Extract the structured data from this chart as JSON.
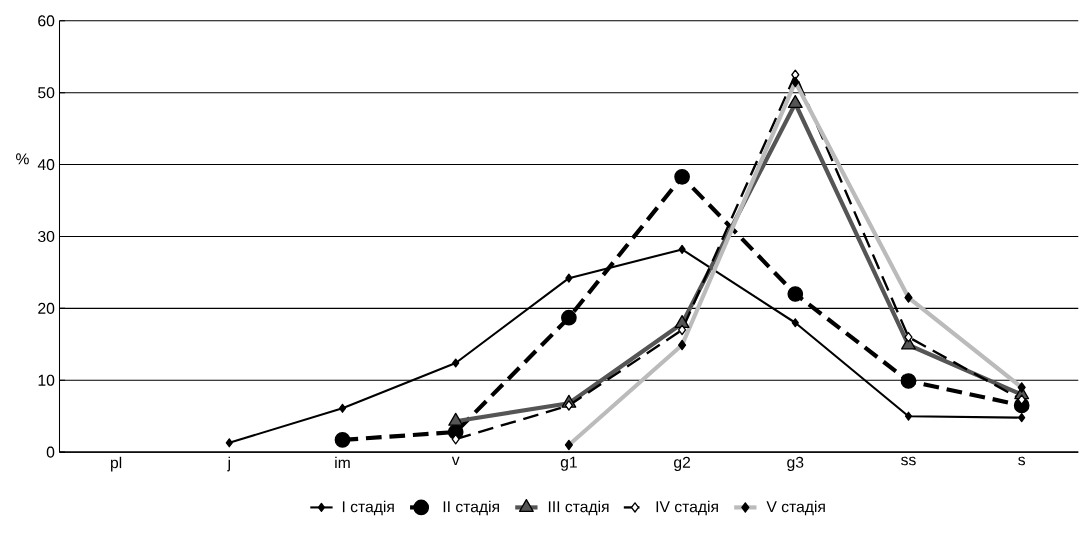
{
  "chart_data": {
    "type": "line",
    "ylabel": "%",
    "categories": [
      "pl",
      "j",
      "im",
      "v",
      "g1",
      "g2",
      "g3",
      "ss",
      "s"
    ],
    "series": [
      {
        "name": "I стадія",
        "color": "#000000",
        "marker": "diamond",
        "line_style": "solid",
        "values": [
          null,
          1.3,
          6.1,
          12.4,
          24.2,
          28.2,
          18,
          5,
          4.8
        ]
      },
      {
        "name": "II стадія",
        "color": "#000000",
        "marker": "circle",
        "line_style": "dashed",
        "values": [
          null,
          null,
          1.7,
          2.8,
          18.7,
          38.3,
          22,
          9.9,
          6.5
        ]
      },
      {
        "name": "III стадія",
        "color": "#555555",
        "marker": "triangle",
        "line_style": "solid",
        "values": [
          null,
          null,
          null,
          4.3,
          6.8,
          17.9,
          48.5,
          14.9,
          8
        ]
      },
      {
        "name": "IV стадія",
        "color": "#000000",
        "marker": "diamond",
        "line_style": "dashed",
        "values": [
          null,
          null,
          null,
          1.8,
          6.5,
          17,
          52.5,
          16,
          7.3
        ]
      },
      {
        "name": "V стадія",
        "color": "#bbbbbb",
        "marker": "diamond",
        "line_style": "solid",
        "values": [
          null,
          null,
          null,
          null,
          1,
          14.9,
          51.5,
          21.5,
          9
        ]
      }
    ],
    "ylim": [
      0,
      60
    ],
    "yticks": [
      0,
      10,
      20,
      30,
      40,
      50,
      60
    ],
    "grid": "y",
    "legend": "bottom"
  }
}
